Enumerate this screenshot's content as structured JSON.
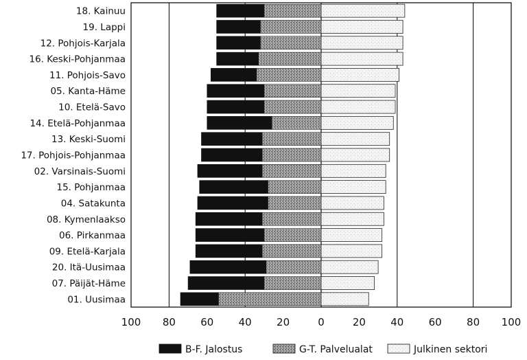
{
  "chart_data": {
    "type": "bar",
    "title": "",
    "xlabel": "",
    "ylabel": "",
    "xlim": [
      -100,
      100
    ],
    "grid": true,
    "legend_position": "bottom",
    "categories": [
      "18. Kainuu",
      "19. Lappi",
      "12. Pohjois-Karjala",
      "16. Keski-Pohjanmaa",
      "11. Pohjois-Savo",
      "05. Kanta-Häme",
      "10. Etelä-Savo",
      "14. Etelä-Pohjanmaa",
      "13. Keski-Suomi",
      "17. Pohjois-Pohjanmaa",
      "02. Varsinais-Suomi",
      "15. Pohjanmaa",
      "04. Satakunta",
      "08. Kymenlaakso",
      "06. Pirkanmaa",
      "09. Etelä-Karjala",
      "20. Itä-Uusimaa",
      "07. Päijät-Häme",
      "01. Uusimaa"
    ],
    "ticks": [
      "100",
      "80",
      "60",
      "40",
      "20",
      "0",
      "20",
      "40",
      "60",
      "80",
      "100"
    ],
    "series": [
      {
        "name": "B-F. Jalostus",
        "direction": "left",
        "color": "#111111",
        "values": [
          25,
          23,
          23,
          22,
          24,
          30,
          30,
          34,
          32,
          32,
          34,
          36,
          37,
          35,
          36,
          35,
          40,
          40,
          20
        ]
      },
      {
        "name": "G-T. Palvelualat",
        "direction": "left",
        "color": "#8c8c8c",
        "values": [
          30,
          32,
          32,
          33,
          34,
          30,
          30,
          26,
          31,
          31,
          31,
          28,
          28,
          31,
          30,
          31,
          29,
          30,
          54
        ]
      },
      {
        "name": "Julkinen sektori",
        "direction": "right",
        "color": "#f2f2f2",
        "values": [
          44,
          43,
          43,
          43,
          41,
          39,
          39,
          38,
          36,
          36,
          34,
          34,
          33,
          33,
          32,
          32,
          30,
          28,
          25
        ]
      }
    ]
  }
}
